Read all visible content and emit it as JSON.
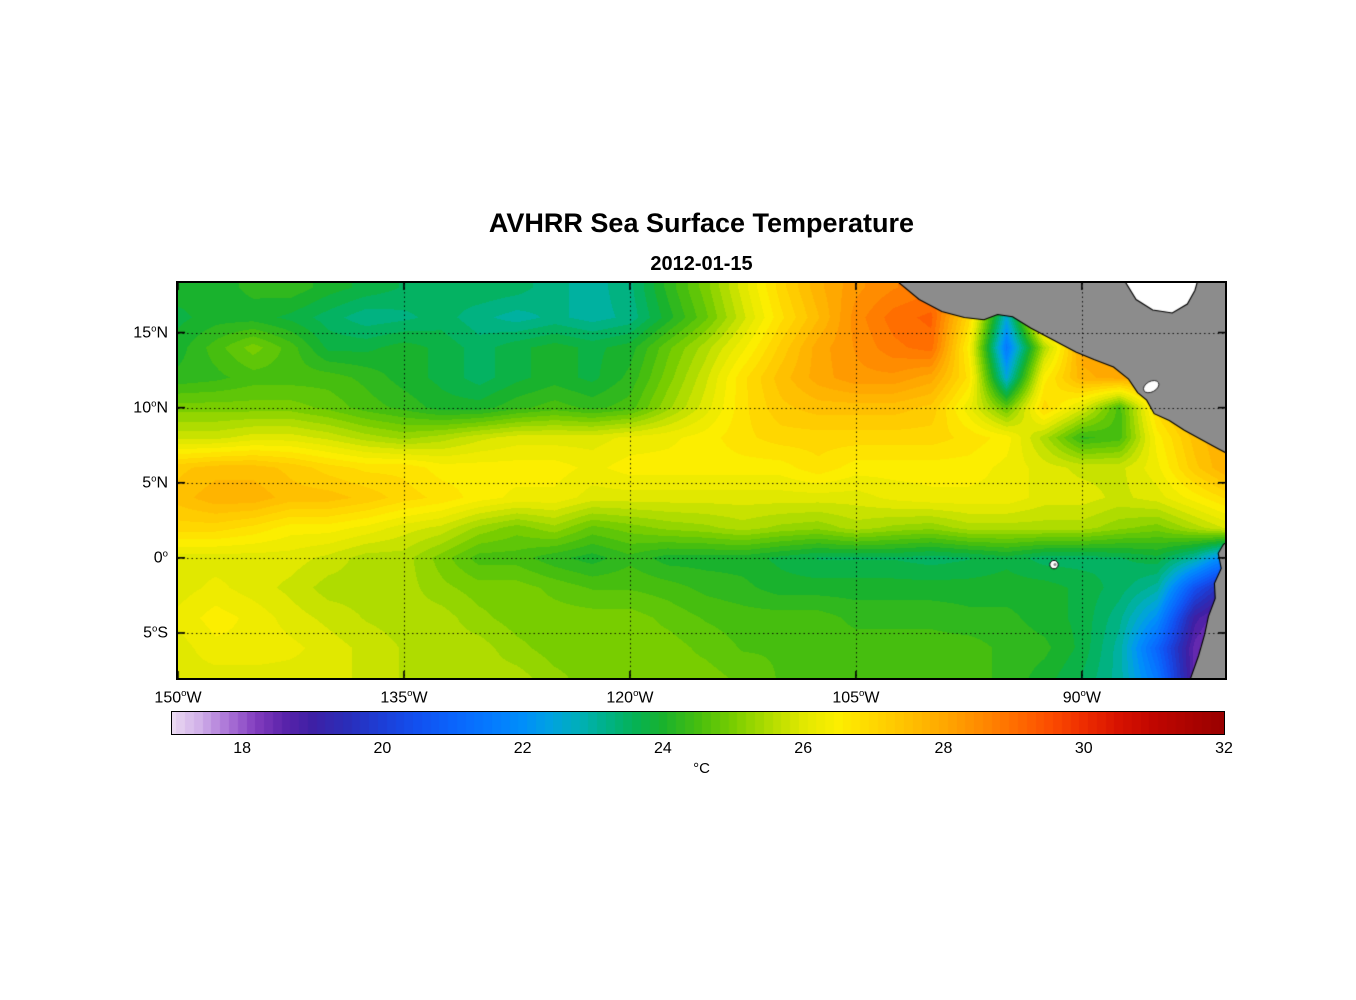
{
  "chart_data": {
    "type": "heatmap",
    "title": "AVHRR Sea Surface Temperature",
    "subtitle": "2012-01-15",
    "degree_glyph": "o",
    "lon_range": [
      -150,
      -80.5
    ],
    "lat_range": [
      18.3,
      -8.0
    ],
    "x_ticks": [
      {
        "lon": -150,
        "text": "150",
        "suffix": "W"
      },
      {
        "lon": -135,
        "text": "135",
        "suffix": "W"
      },
      {
        "lon": -120,
        "text": "120",
        "suffix": "W"
      },
      {
        "lon": -105,
        "text": "105",
        "suffix": "W"
      },
      {
        "lon": -90,
        "text": "90",
        "suffix": "W"
      }
    ],
    "y_ticks": [
      {
        "lat": 15,
        "text": "15",
        "suffix": "N"
      },
      {
        "lat": 10,
        "text": "10",
        "suffix": "N"
      },
      {
        "lat": 5,
        "text": "5",
        "suffix": "N"
      },
      {
        "lat": 0,
        "text": "0",
        "suffix": ""
      },
      {
        "lat": -5,
        "text": "5",
        "suffix": "S"
      }
    ],
    "grid": {
      "lons": [
        -135,
        -120,
        -105,
        -90
      ],
      "lats": [
        15,
        10,
        5,
        0,
        -5
      ],
      "style": "dotted",
      "color": "#000000"
    },
    "colorbar": {
      "min": 17,
      "max": 32,
      "ticks": [
        18,
        20,
        22,
        24,
        26,
        28,
        30,
        32
      ],
      "label": "°C"
    },
    "colormap_stops": [
      [
        17.0,
        235,
        218,
        242
      ],
      [
        17.4,
        208,
        175,
        232
      ],
      [
        17.8,
        170,
        115,
        215
      ],
      [
        18.2,
        130,
        60,
        190
      ],
      [
        18.6,
        90,
        35,
        170
      ],
      [
        19.0,
        62,
        32,
        165
      ],
      [
        19.5,
        42,
        45,
        185
      ],
      [
        20.0,
        28,
        62,
        215
      ],
      [
        20.5,
        18,
        80,
        240
      ],
      [
        21.0,
        10,
        100,
        252
      ],
      [
        21.5,
        5,
        120,
        255
      ],
      [
        22.0,
        0,
        142,
        250
      ],
      [
        22.4,
        0,
        162,
        225
      ],
      [
        22.8,
        0,
        175,
        185
      ],
      [
        23.2,
        0,
        178,
        135
      ],
      [
        23.6,
        5,
        178,
        85
      ],
      [
        24.0,
        25,
        178,
        45
      ],
      [
        24.5,
        70,
        190,
        15
      ],
      [
        25.0,
        120,
        205,
        0
      ],
      [
        25.5,
        175,
        220,
        0
      ],
      [
        26.0,
        225,
        232,
        0
      ],
      [
        26.5,
        252,
        238,
        0
      ],
      [
        27.0,
        255,
        215,
        0
      ],
      [
        27.5,
        255,
        192,
        0
      ],
      [
        28.0,
        255,
        168,
        0
      ],
      [
        28.5,
        255,
        140,
        0
      ],
      [
        29.0,
        255,
        110,
        0
      ],
      [
        29.5,
        252,
        78,
        0
      ],
      [
        30.0,
        238,
        45,
        0
      ],
      [
        30.5,
        215,
        18,
        0
      ],
      [
        31.0,
        192,
        6,
        0
      ],
      [
        32.0,
        152,
        0,
        0
      ]
    ],
    "grid_lons": [
      -150,
      -147.5,
      -145,
      -142.5,
      -140,
      -137.5,
      -135,
      -132.5,
      -130,
      -127.5,
      -125,
      -122.5,
      -120,
      -117.5,
      -115,
      -112.5,
      -110,
      -107.5,
      -105,
      -102.5,
      -100,
      -97.5,
      -95,
      -92.5,
      -90,
      -87.5,
      -85,
      -82.5,
      -80
    ],
    "grid_lats": [
      18,
      16,
      14,
      12,
      10,
      8,
      6,
      4,
      2,
      0,
      -2,
      -4,
      -6,
      -8
    ],
    "sst": [
      [
        24.0,
        24.0,
        24.2,
        24.3,
        24.0,
        23.8,
        23.6,
        23.5,
        23.6,
        23.5,
        23.2,
        23.0,
        23.3,
        24.2,
        25.0,
        26.0,
        27.0,
        27.8,
        28.3,
        28.6,
        28.8,
        28.8,
        28.8,
        28.8,
        28.8,
        28.8,
        28.8,
        28.8,
        28.8
      ],
      [
        23.8,
        24.0,
        24.0,
        23.8,
        23.5,
        23.2,
        23.3,
        23.5,
        23.2,
        23.0,
        23.2,
        23.0,
        23.2,
        24.0,
        24.8,
        25.8,
        26.8,
        27.6,
        28.5,
        29.0,
        29.2,
        27.0,
        22.5,
        27.5,
        28.0,
        28.0,
        28.0,
        28.0,
        28.0
      ],
      [
        24.0,
        24.5,
        25.0,
        24.5,
        23.8,
        23.8,
        24.0,
        23.8,
        23.5,
        23.8,
        24.0,
        23.8,
        24.0,
        24.8,
        25.5,
        26.3,
        27.2,
        28.0,
        28.4,
        28.8,
        29.0,
        26.5,
        21.5,
        25.5,
        28.0,
        28.0,
        28.0,
        28.0,
        28.0
      ],
      [
        24.2,
        24.3,
        24.5,
        24.5,
        24.5,
        24.3,
        24.0,
        23.8,
        23.5,
        23.8,
        24.0,
        23.8,
        24.2,
        25.0,
        25.8,
        26.8,
        27.5,
        28.0,
        28.3,
        28.3,
        28.0,
        26.8,
        22.5,
        26.5,
        27.8,
        28.0,
        28.0,
        28.0,
        28.0
      ],
      [
        25.0,
        25.0,
        25.0,
        25.0,
        24.8,
        24.5,
        24.3,
        24.0,
        24.0,
        24.3,
        24.5,
        24.3,
        24.5,
        25.3,
        26.0,
        26.8,
        27.3,
        27.5,
        27.5,
        27.5,
        27.3,
        26.2,
        24.8,
        27.0,
        26.0,
        24.5,
        27.0,
        28.0,
        28.0
      ],
      [
        25.8,
        25.8,
        26.0,
        26.0,
        25.8,
        25.5,
        25.3,
        25.5,
        25.8,
        26.0,
        26.0,
        26.0,
        26.2,
        26.3,
        26.5,
        26.8,
        27.0,
        27.0,
        27.0,
        27.0,
        27.0,
        26.8,
        26.5,
        25.5,
        24.3,
        24.5,
        26.5,
        27.5,
        28.0
      ],
      [
        27.3,
        27.5,
        27.5,
        27.3,
        27.0,
        26.8,
        26.8,
        26.5,
        26.5,
        26.5,
        26.5,
        26.3,
        26.5,
        26.5,
        26.5,
        26.5,
        26.5,
        26.8,
        26.5,
        26.5,
        26.5,
        26.5,
        26.3,
        26.0,
        25.8,
        25.8,
        26.3,
        27.3,
        28.0
      ],
      [
        27.5,
        27.8,
        27.8,
        27.5,
        27.5,
        27.3,
        27.0,
        26.8,
        26.5,
        26.3,
        26.3,
        26.0,
        26.0,
        26.0,
        26.0,
        26.0,
        26.0,
        26.0,
        26.0,
        26.2,
        26.3,
        26.3,
        26.3,
        26.0,
        26.0,
        25.8,
        26.0,
        26.5,
        27.0
      ],
      [
        27.0,
        27.0,
        26.8,
        26.5,
        26.5,
        26.3,
        26.0,
        25.8,
        25.3,
        25.0,
        25.3,
        24.8,
        25.0,
        25.2,
        25.3,
        25.5,
        25.3,
        25.2,
        25.5,
        25.3,
        25.2,
        25.5,
        25.5,
        25.5,
        25.5,
        25.2,
        25.0,
        25.5,
        26.0
      ],
      [
        26.0,
        26.0,
        26.0,
        26.0,
        25.8,
        25.5,
        25.5,
        25.0,
        24.5,
        24.5,
        24.2,
        24.0,
        24.3,
        24.0,
        24.0,
        24.0,
        23.8,
        23.6,
        23.6,
        23.6,
        23.5,
        23.6,
        23.8,
        23.5,
        23.5,
        23.6,
        23.8,
        23.0,
        21.5
      ],
      [
        26.0,
        26.2,
        26.0,
        25.8,
        25.5,
        25.5,
        25.5,
        25.2,
        25.0,
        25.0,
        24.8,
        24.6,
        24.6,
        24.5,
        24.3,
        24.2,
        24.0,
        24.0,
        24.0,
        24.0,
        24.0,
        24.0,
        24.0,
        24.0,
        23.8,
        23.5,
        23.0,
        20.5,
        19.0
      ],
      [
        26.2,
        26.5,
        26.3,
        26.0,
        25.8,
        25.6,
        25.5,
        25.5,
        25.2,
        25.0,
        25.0,
        25.0,
        25.0,
        24.8,
        24.6,
        24.5,
        24.5,
        24.5,
        24.3,
        24.3,
        24.3,
        24.2,
        24.2,
        24.0,
        23.8,
        23.2,
        22.0,
        19.0,
        18.0
      ],
      [
        26.0,
        26.3,
        26.3,
        26.2,
        26.0,
        25.8,
        25.6,
        25.5,
        25.5,
        25.2,
        25.0,
        25.0,
        25.0,
        25.0,
        24.8,
        24.6,
        24.6,
        24.5,
        24.5,
        24.5,
        24.5,
        24.5,
        24.3,
        24.2,
        23.8,
        23.0,
        21.0,
        18.5,
        17.5
      ],
      [
        26.0,
        26.0,
        26.0,
        26.0,
        26.0,
        25.8,
        25.6,
        25.6,
        25.5,
        25.5,
        25.2,
        25.0,
        25.0,
        25.0,
        25.0,
        24.8,
        24.6,
        24.6,
        24.6,
        24.5,
        24.5,
        24.5,
        24.3,
        24.0,
        23.6,
        23.0,
        21.5,
        18.5,
        17.5
      ]
    ],
    "land": {
      "color": "#8c8c8c",
      "outline": "#000000",
      "masked_color": "#ffffff",
      "polygons": [
        {
          "name": "central-america",
          "points": [
            [
              -102.3,
              18.45
            ],
            [
              -100.8,
              17.2
            ],
            [
              -99.3,
              16.4
            ],
            [
              -97.8,
              16.0
            ],
            [
              -96.5,
              15.85
            ],
            [
              -95.6,
              16.2
            ],
            [
              -94.6,
              16.05
            ],
            [
              -93.4,
              15.3
            ],
            [
              -91.9,
              14.5
            ],
            [
              -90.4,
              13.7
            ],
            [
              -89.2,
              13.2
            ],
            [
              -87.9,
              12.7
            ],
            [
              -86.9,
              11.9
            ],
            [
              -86.3,
              11.0
            ],
            [
              -85.7,
              10.5
            ],
            [
              -85.2,
              9.6
            ],
            [
              -84.2,
              9.15
            ],
            [
              -83.2,
              8.5
            ],
            [
              -82.2,
              7.95
            ],
            [
              -81.2,
              7.4
            ],
            [
              -80.2,
              6.85
            ],
            [
              -79.8,
              6.8
            ],
            [
              -79.8,
              18.45
            ]
          ]
        },
        {
          "name": "south-america",
          "points": [
            [
              -79.8,
              1.4
            ],
            [
              -80.6,
              0.9
            ],
            [
              -80.95,
              0.3
            ],
            [
              -80.75,
              -0.7
            ],
            [
              -81.2,
              -1.7
            ],
            [
              -81.15,
              -2.7
            ],
            [
              -81.6,
              -3.9
            ],
            [
              -81.85,
              -5.1
            ],
            [
              -82.25,
              -6.5
            ],
            [
              -82.85,
              -8.2
            ],
            [
              -79.8,
              -8.2
            ]
          ]
        }
      ],
      "masked": [
        {
          "name": "caribbean-sea",
          "points": [
            [
              -87.2,
              18.5
            ],
            [
              -86.4,
              17.2
            ],
            [
              -85.3,
              16.5
            ],
            [
              -84.0,
              16.3
            ],
            [
              -83.0,
              16.9
            ],
            [
              -82.5,
              17.8
            ],
            [
              -82.3,
              18.5
            ]
          ]
        }
      ],
      "lake": {
        "name": "lake-nicaragua",
        "center": [
          -85.4,
          11.4
        ],
        "rx": 0.55,
        "ry": 0.35
      },
      "island": {
        "name": "galapagos",
        "center": [
          -91.85,
          -0.45
        ],
        "r": 0.28
      }
    }
  }
}
